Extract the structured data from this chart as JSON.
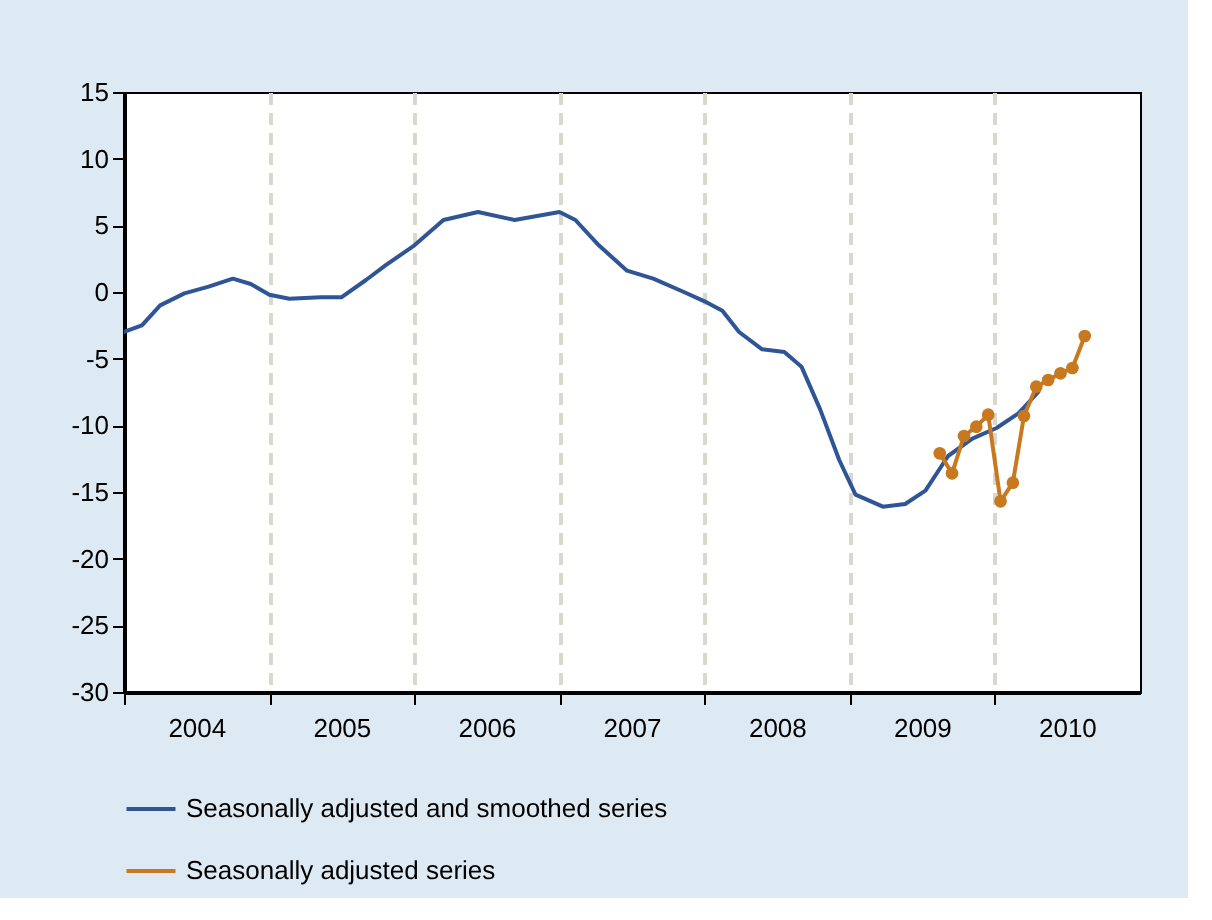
{
  "chart_data": {
    "type": "line",
    "xlim": [
      "2004-01-01",
      "2011-01-01"
    ],
    "xticks": [
      {
        "value": "2004-01-01",
        "label": null
      },
      {
        "value": "2004-07-01",
        "label": "2004"
      },
      {
        "value": "2005-01-01",
        "label": null
      },
      {
        "value": "2005-07-01",
        "label": "2005"
      },
      {
        "value": "2006-01-01",
        "label": null
      },
      {
        "value": "2006-07-01",
        "label": "2006"
      },
      {
        "value": "2007-01-01",
        "label": null
      },
      {
        "value": "2007-07-01",
        "label": "2007"
      },
      {
        "value": "2008-01-01",
        "label": null
      },
      {
        "value": "2008-07-01",
        "label": "2008"
      },
      {
        "value": "2009-01-01",
        "label": null
      },
      {
        "value": "2009-07-01",
        "label": "2009"
      },
      {
        "value": "2010-01-01",
        "label": null
      },
      {
        "value": "2010-07-01",
        "label": "2010"
      }
    ],
    "ylim": [
      -30,
      15
    ],
    "yticks": [
      -30,
      -25,
      -20,
      -15,
      -10,
      -5,
      0,
      5,
      10,
      15
    ],
    "grid": "x",
    "legend": "bottom",
    "line_style": "solid",
    "series": [
      {
        "name": "Seasonally adjusted and smoothed series",
        "color": "#2f5597",
        "marker": "none",
        "x": [
          "2004-01-01",
          "2004-02-15",
          "2004-04-01",
          "2004-06-01",
          "2004-08-01",
          "2004-10-01",
          "2004-11-15",
          "2005-01-01",
          "2005-02-20",
          "2005-05-10",
          "2005-07-01",
          "2005-09-01",
          "2005-10-20",
          "2006-01-01",
          "2006-03-15",
          "2006-06-10",
          "2006-09-10",
          "2007-01-01",
          "2007-02-10",
          "2007-04-10",
          "2007-06-20",
          "2007-08-25",
          "2007-11-10",
          "2008-01-01",
          "2008-02-15",
          "2008-03-28",
          "2008-05-25",
          "2008-07-20",
          "2008-09-01",
          "2008-10-18",
          "2008-12-05",
          "2009-01-15",
          "2009-03-25",
          "2009-05-20",
          "2009-07-10",
          "2009-09-05",
          "2009-11-05",
          "2010-01-05",
          "2010-03-01",
          "2010-04-20"
        ],
        "values": [
          -3.0,
          -2.5,
          -1.0,
          -0.1,
          0.4,
          1.0,
          0.6,
          -0.2,
          -0.5,
          -0.4,
          -0.4,
          0.9,
          2.0,
          3.5,
          5.4,
          6.0,
          5.4,
          6.0,
          5.4,
          3.5,
          1.6,
          1.0,
          0.0,
          -0.7,
          -1.4,
          -3.0,
          -4.3,
          -4.5,
          -5.6,
          -8.8,
          -12.6,
          -15.2,
          -16.1,
          -15.9,
          -14.9,
          -12.3,
          -11.0,
          -10.2,
          -9.1,
          -7.5
        ]
      },
      {
        "name": "Seasonally adjusted series",
        "color": "#c8781e",
        "marker": "circle",
        "x": [
          "2009-08-15",
          "2009-09-15",
          "2009-10-15",
          "2009-11-15",
          "2009-12-15",
          "2010-01-15",
          "2010-02-15",
          "2010-03-15",
          "2010-04-15",
          "2010-05-15",
          "2010-06-15",
          "2010-07-15",
          "2010-08-15"
        ],
        "values": [
          -12.1,
          -13.6,
          -10.8,
          -10.1,
          -9.2,
          -15.7,
          -14.3,
          -9.3,
          -7.1,
          -6.6,
          -6.1,
          -5.7,
          -3.3
        ]
      }
    ]
  }
}
